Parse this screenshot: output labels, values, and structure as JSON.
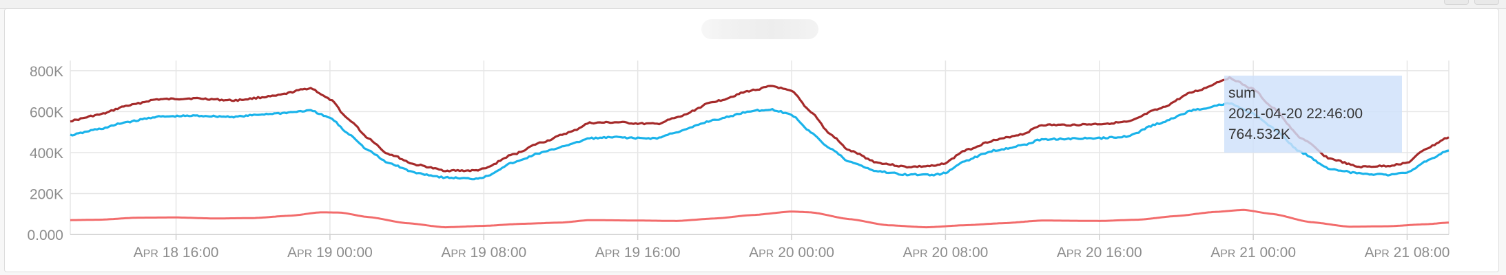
{
  "window": {
    "corner_button_label": ""
  },
  "chart_data": {
    "type": "line",
    "title": "",
    "xlabel": "",
    "ylabel": "",
    "ylim": [
      0,
      850000
    ],
    "xlim": [
      "2021-04-18 10:30",
      "2021-04-21 10:10"
    ],
    "y_ticks": [
      {
        "value": 0,
        "label": "0.000"
      },
      {
        "value": 200000,
        "label": "200K"
      },
      {
        "value": 400000,
        "label": "400K"
      },
      {
        "value": 600000,
        "label": "600K"
      },
      {
        "value": 800000,
        "label": "800K"
      }
    ],
    "x_ticks": [
      {
        "time": "2021-04-18 16:00",
        "month": "Apr",
        "rest": " 18 16:00"
      },
      {
        "time": "2021-04-19 00:00",
        "month": "Apr",
        "rest": " 19 00:00"
      },
      {
        "time": "2021-04-19 08:00",
        "month": "Apr",
        "rest": " 19 08:00"
      },
      {
        "time": "2021-04-19 16:00",
        "month": "Apr",
        "rest": " 19 16:00"
      },
      {
        "time": "2021-04-20 00:00",
        "month": "Apr",
        "rest": " 20 00:00"
      },
      {
        "time": "2021-04-20 08:00",
        "month": "Apr",
        "rest": " 20 08:00"
      },
      {
        "time": "2021-04-20 16:00",
        "month": "Apr",
        "rest": " 20 16:00"
      },
      {
        "time": "2021-04-21 00:00",
        "month": "Apr",
        "rest": " 21 00:00"
      },
      {
        "time": "2021-04-21 08:00",
        "month": "Apr",
        "rest": " 21 08:00"
      }
    ],
    "grid": true,
    "legend": "none",
    "series": [
      {
        "color": "#a52a2a",
        "points": [
          [
            "2021-04-18 10:30",
            555000
          ],
          [
            "2021-04-18 12:00",
            585000
          ],
          [
            "2021-04-18 13:30",
            630000
          ],
          [
            "2021-04-18 15:00",
            660000
          ],
          [
            "2021-04-18 17:00",
            665000
          ],
          [
            "2021-04-18 19:00",
            655000
          ],
          [
            "2021-04-18 21:00",
            675000
          ],
          [
            "2021-04-18 23:00",
            715000
          ],
          [
            "2021-04-19 00:00",
            660000
          ],
          [
            "2021-04-19 01:00",
            560000
          ],
          [
            "2021-04-19 02:00",
            470000
          ],
          [
            "2021-04-19 03:00",
            395000
          ],
          [
            "2021-04-19 04:30",
            340000
          ],
          [
            "2021-04-19 06:00",
            312000
          ],
          [
            "2021-04-19 07:30",
            312000
          ],
          [
            "2021-04-19 08:00",
            320000
          ],
          [
            "2021-04-19 09:30",
            390000
          ],
          [
            "2021-04-19 11:00",
            450000
          ],
          [
            "2021-04-19 12:30",
            500000
          ],
          [
            "2021-04-19 13:30",
            545000
          ],
          [
            "2021-04-19 15:00",
            548000
          ],
          [
            "2021-04-19 16:00",
            542000
          ],
          [
            "2021-04-19 17:00",
            540000
          ],
          [
            "2021-04-19 18:00",
            570000
          ],
          [
            "2021-04-19 20:00",
            650000
          ],
          [
            "2021-04-19 22:00",
            705000
          ],
          [
            "2021-04-19 23:00",
            725000
          ],
          [
            "2021-04-20 00:00",
            700000
          ],
          [
            "2021-04-20 01:00",
            600000
          ],
          [
            "2021-04-20 02:00",
            490000
          ],
          [
            "2021-04-20 03:00",
            410000
          ],
          [
            "2021-04-20 04:30",
            350000
          ],
          [
            "2021-04-20 06:00",
            330000
          ],
          [
            "2021-04-20 07:30",
            335000
          ],
          [
            "2021-04-20 08:00",
            350000
          ],
          [
            "2021-04-20 09:00",
            410000
          ],
          [
            "2021-04-20 10:30",
            460000
          ],
          [
            "2021-04-20 12:00",
            490000
          ],
          [
            "2021-04-20 13:00",
            535000
          ],
          [
            "2021-04-20 14:30",
            535000
          ],
          [
            "2021-04-20 16:00",
            540000
          ],
          [
            "2021-04-20 17:30",
            550000
          ],
          [
            "2021-04-20 19:00",
            610000
          ],
          [
            "2021-04-20 21:00",
            700000
          ],
          [
            "2021-04-20 22:46",
            764532
          ],
          [
            "2021-04-21 00:00",
            710000
          ],
          [
            "2021-04-21 01:00",
            620000
          ],
          [
            "2021-04-21 02:30",
            470000
          ],
          [
            "2021-04-21 04:00",
            370000
          ],
          [
            "2021-04-21 05:30",
            330000
          ],
          [
            "2021-04-21 07:00",
            335000
          ],
          [
            "2021-04-21 08:00",
            350000
          ],
          [
            "2021-04-21 09:00",
            420000
          ],
          [
            "2021-04-21 10:10",
            475000
          ]
        ]
      },
      {
        "color": "#1ab3ea",
        "points": [
          [
            "2021-04-18 10:30",
            485000
          ],
          [
            "2021-04-18 12:00",
            515000
          ],
          [
            "2021-04-18 13:30",
            550000
          ],
          [
            "2021-04-18 15:00",
            575000
          ],
          [
            "2021-04-18 17:00",
            580000
          ],
          [
            "2021-04-18 19:00",
            575000
          ],
          [
            "2021-04-18 21:00",
            590000
          ],
          [
            "2021-04-18 23:00",
            605000
          ],
          [
            "2021-04-19 00:00",
            570000
          ],
          [
            "2021-04-19 01:00",
            490000
          ],
          [
            "2021-04-19 02:00",
            410000
          ],
          [
            "2021-04-19 03:00",
            350000
          ],
          [
            "2021-04-19 04:30",
            300000
          ],
          [
            "2021-04-19 06:00",
            278000
          ],
          [
            "2021-04-19 07:30",
            272000
          ],
          [
            "2021-04-19 08:00",
            280000
          ],
          [
            "2021-04-19 09:30",
            350000
          ],
          [
            "2021-04-19 11:00",
            400000
          ],
          [
            "2021-04-19 12:30",
            440000
          ],
          [
            "2021-04-19 13:30",
            470000
          ],
          [
            "2021-04-19 15:00",
            475000
          ],
          [
            "2021-04-19 16:00",
            470000
          ],
          [
            "2021-04-19 17:00",
            470000
          ],
          [
            "2021-04-19 18:00",
            500000
          ],
          [
            "2021-04-19 20:00",
            560000
          ],
          [
            "2021-04-19 22:00",
            605000
          ],
          [
            "2021-04-19 23:00",
            610000
          ],
          [
            "2021-04-20 00:00",
            585000
          ],
          [
            "2021-04-20 01:00",
            500000
          ],
          [
            "2021-04-20 02:00",
            420000
          ],
          [
            "2021-04-20 03:00",
            355000
          ],
          [
            "2021-04-20 04:30",
            308000
          ],
          [
            "2021-04-20 06:00",
            292000
          ],
          [
            "2021-04-20 07:30",
            292000
          ],
          [
            "2021-04-20 08:00",
            300000
          ],
          [
            "2021-04-20 09:00",
            360000
          ],
          [
            "2021-04-20 10:30",
            410000
          ],
          [
            "2021-04-20 12:00",
            435000
          ],
          [
            "2021-04-20 13:00",
            465000
          ],
          [
            "2021-04-20 14:30",
            468000
          ],
          [
            "2021-04-20 16:00",
            470000
          ],
          [
            "2021-04-20 17:30",
            480000
          ],
          [
            "2021-04-20 19:00",
            540000
          ],
          [
            "2021-04-20 21:00",
            610000
          ],
          [
            "2021-04-20 22:46",
            640000
          ],
          [
            "2021-04-21 00:00",
            590000
          ],
          [
            "2021-04-21 01:00",
            520000
          ],
          [
            "2021-04-21 02:30",
            400000
          ],
          [
            "2021-04-21 04:00",
            320000
          ],
          [
            "2021-04-21 05:30",
            298000
          ],
          [
            "2021-04-21 07:00",
            292000
          ],
          [
            "2021-04-21 08:00",
            300000
          ],
          [
            "2021-04-21 09:00",
            360000
          ],
          [
            "2021-04-21 10:10",
            410000
          ]
        ]
      },
      {
        "color": "#f26c6c",
        "points": [
          [
            "2021-04-18 10:30",
            70000
          ],
          [
            "2021-04-18 12:00",
            72000
          ],
          [
            "2021-04-18 14:00",
            82000
          ],
          [
            "2021-04-18 16:00",
            83000
          ],
          [
            "2021-04-18 18:00",
            78000
          ],
          [
            "2021-04-18 20:00",
            80000
          ],
          [
            "2021-04-18 22:00",
            92000
          ],
          [
            "2021-04-18 23:30",
            108000
          ],
          [
            "2021-04-19 00:30",
            107000
          ],
          [
            "2021-04-19 02:00",
            85000
          ],
          [
            "2021-04-19 04:00",
            55000
          ],
          [
            "2021-04-19 06:00",
            35000
          ],
          [
            "2021-04-19 08:00",
            42000
          ],
          [
            "2021-04-19 10:00",
            52000
          ],
          [
            "2021-04-19 12:00",
            58000
          ],
          [
            "2021-04-19 13:30",
            70000
          ],
          [
            "2021-04-19 16:00",
            68000
          ],
          [
            "2021-04-19 18:00",
            66000
          ],
          [
            "2021-04-19 20:00",
            78000
          ],
          [
            "2021-04-19 22:00",
            95000
          ],
          [
            "2021-04-20 00:00",
            112000
          ],
          [
            "2021-04-20 01:00",
            108000
          ],
          [
            "2021-04-20 03:00",
            75000
          ],
          [
            "2021-04-20 05:00",
            45000
          ],
          [
            "2021-04-20 07:00",
            35000
          ],
          [
            "2021-04-20 09:00",
            45000
          ],
          [
            "2021-04-20 11:00",
            55000
          ],
          [
            "2021-04-20 13:00",
            68000
          ],
          [
            "2021-04-20 16:00",
            66000
          ],
          [
            "2021-04-20 18:00",
            72000
          ],
          [
            "2021-04-20 20:00",
            90000
          ],
          [
            "2021-04-20 22:00",
            110000
          ],
          [
            "2021-04-20 23:30",
            120000
          ],
          [
            "2021-04-21 01:00",
            100000
          ],
          [
            "2021-04-21 03:00",
            60000
          ],
          [
            "2021-04-21 05:00",
            38000
          ],
          [
            "2021-04-21 07:00",
            40000
          ],
          [
            "2021-04-21 09:00",
            50000
          ],
          [
            "2021-04-21 10:10",
            58000
          ]
        ]
      }
    ],
    "tooltip": {
      "series": "sum",
      "time": "2021-04-20 22:46:00",
      "value": "764.532K"
    }
  }
}
